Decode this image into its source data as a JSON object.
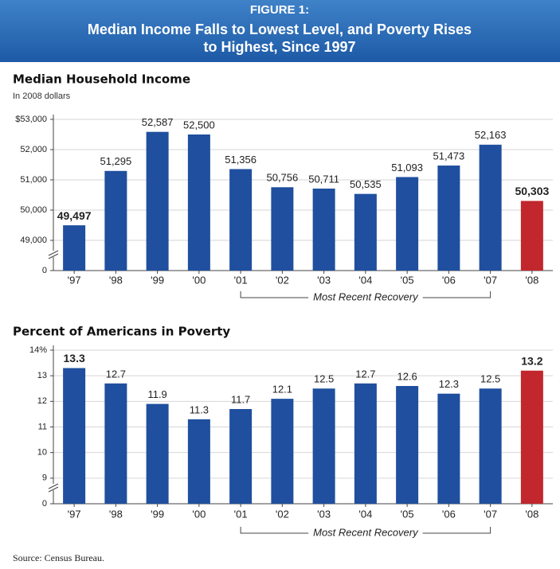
{
  "header": {
    "figure": "FIGURE 1:",
    "title": [
      "Median Income Falls to Lowest Level, and Poverty Rises",
      "to Highest, Since 1997"
    ]
  },
  "chart_data": [
    {
      "type": "bar",
      "title": "Median Household Income",
      "subtitle": "In 2008 dollars",
      "categories": [
        "'97",
        "'98",
        "'99",
        "'00",
        "'01",
        "'02",
        "'03",
        "'04",
        "'05",
        "'06",
        "'07",
        "'08"
      ],
      "values": [
        49497,
        51295,
        52587,
        52500,
        51356,
        50756,
        50711,
        50535,
        51093,
        51473,
        52163,
        50303
      ],
      "value_labels": [
        "49,497",
        "51,295",
        "52,587",
        "52,500",
        "51,356",
        "50,756",
        "50,711",
        "50,535",
        "51,093",
        "51,473",
        "52,163",
        "50,303"
      ],
      "emphasis": [
        true,
        false,
        false,
        false,
        false,
        false,
        false,
        false,
        false,
        false,
        false,
        true
      ],
      "colors": [
        "#1f4f9e",
        "#1f4f9e",
        "#1f4f9e",
        "#1f4f9e",
        "#1f4f9e",
        "#1f4f9e",
        "#1f4f9e",
        "#1f4f9e",
        "#1f4f9e",
        "#1f4f9e",
        "#1f4f9e",
        "#c1272d"
      ],
      "ylim": [
        48000,
        53000
      ],
      "yticks": [
        {
          "value": 53000,
          "label": "$53,000"
        },
        {
          "value": 52000,
          "label": "52,000"
        },
        {
          "value": 51000,
          "label": "51,000"
        },
        {
          "value": 50000,
          "label": "50,000"
        },
        {
          "value": 49000,
          "label": "49,000"
        },
        0
      ],
      "axis_break": true,
      "grid": true,
      "annotation": {
        "text": "Most Recent Recovery",
        "from": "'01",
        "to": "'07"
      }
    },
    {
      "type": "bar",
      "title": "Percent of Americans in Poverty",
      "categories": [
        "'97",
        "'98",
        "'99",
        "'00",
        "'01",
        "'02",
        "'03",
        "'04",
        "'05",
        "'06",
        "'07",
        "'08"
      ],
      "values": [
        13.3,
        12.7,
        11.9,
        11.3,
        11.7,
        12.1,
        12.5,
        12.7,
        12.6,
        12.3,
        12.5,
        13.2
      ],
      "emphasis": [
        true,
        false,
        false,
        false,
        false,
        false,
        false,
        false,
        false,
        false,
        false,
        true
      ],
      "colors": [
        "#1f4f9e",
        "#1f4f9e",
        "#1f4f9e",
        "#1f4f9e",
        "#1f4f9e",
        "#1f4f9e",
        "#1f4f9e",
        "#1f4f9e",
        "#1f4f9e",
        "#1f4f9e",
        "#1f4f9e",
        "#c1272d"
      ],
      "ylim": [
        8,
        14
      ],
      "yticks": [
        {
          "value": 14,
          "label": "14%"
        },
        13,
        12,
        11,
        10,
        9,
        0
      ],
      "axis_break": true,
      "grid": true,
      "annotation": {
        "text": "Most Recent Recovery",
        "from": "'01",
        "to": "'07"
      }
    }
  ],
  "source": "Source: Census Bureau."
}
